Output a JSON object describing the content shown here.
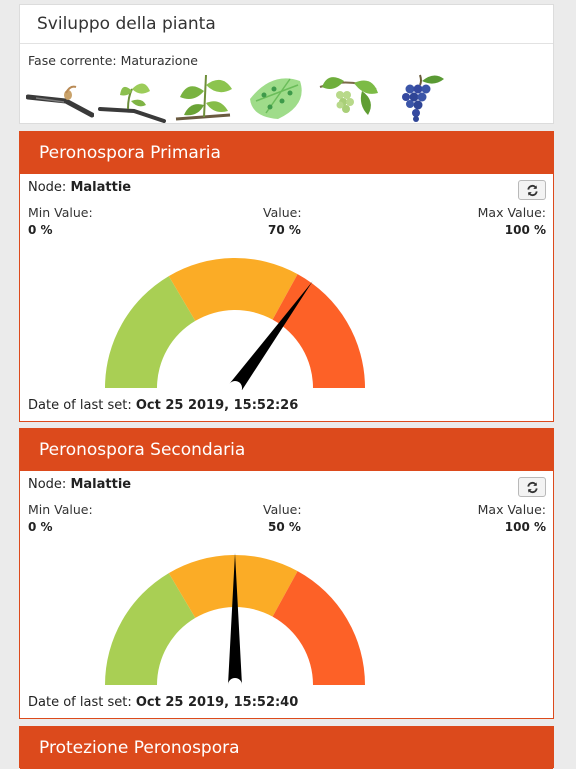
{
  "plant": {
    "title": "Sviluppo della pianta",
    "phase_label": "Fase corrente:",
    "phase_value": "Maturazione",
    "stages": [
      {
        "icon": "budbreak-icon"
      },
      {
        "icon": "leaf-sprout-icon"
      },
      {
        "icon": "shoot-growth-icon"
      },
      {
        "icon": "flowering-icon"
      },
      {
        "icon": "fruit-set-icon"
      },
      {
        "icon": "ripe-grapes-icon"
      }
    ]
  },
  "gauges": [
    {
      "title": "Peronospora Primaria",
      "node_label": "Node:",
      "node_value": "Malattie",
      "min_label": "Min Value:",
      "value_label": "Value:",
      "max_label": "Max Value:",
      "min_value": "0 %",
      "value": "70 %",
      "max_value": "100 %",
      "percent": 70,
      "date_label": "Date of last set:",
      "date_value": "Oct 25 2019, 15:52:26"
    },
    {
      "title": "Peronospora Secondaria",
      "node_label": "Node:",
      "node_value": "Malattie",
      "min_label": "Min Value:",
      "value_label": "Value:",
      "max_label": "Max Value:",
      "min_value": "0 %",
      "value": "50 %",
      "max_value": "100 %",
      "percent": 50,
      "date_label": "Date of last set:",
      "date_value": "Oct 25 2019, 15:52:40"
    }
  ],
  "protection": {
    "title": "Protezione Peronospora"
  },
  "colors": {
    "header": "#dc4a1c",
    "zone_low": "#a9cf54",
    "zone_mid": "#fbac26",
    "zone_high": "#fd6127",
    "needle": "#000000"
  }
}
